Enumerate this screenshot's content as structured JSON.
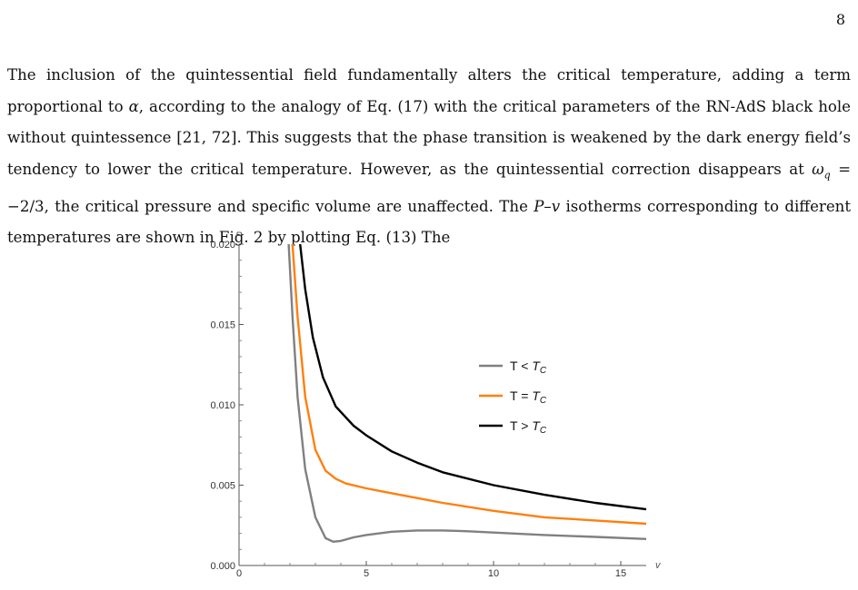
{
  "page": {
    "number": "8"
  },
  "paragraph": {
    "p1": "The inclusion of the quintessential field fundamentally alters the critical temperature, adding a term proportional to ",
    "alpha": "α",
    "p2": ", according to the analogy of Eq. (17) with the critical parameters of the RN-AdS black hole without quintessence [21, 72]. This suggests that the phase transition is weakened by the dark energy field’s tendency to lower the critical temperature. However, as the quintessential correction disappears at ",
    "omega": "ω",
    "omega_sub": "q",
    "p3": " = −2/3, the critical pressure and specific volume are unaffected. The ",
    "pv": "P–v",
    "p4": " isotherms corresponding to different temperatures are shown in Fig. 2 by plotting Eq. (13) The"
  },
  "chart_data": {
    "type": "line",
    "xlabel": "v",
    "ylabel": "P",
    "xlim": [
      0,
      16
    ],
    "ylim": [
      0,
      0.02
    ],
    "x_ticks": [
      "0",
      "5",
      "10",
      "15"
    ],
    "y_ticks": [
      "0.000",
      "0.005",
      "0.010",
      "0.015",
      "0.020"
    ],
    "legend_position": "top-right",
    "colors": {
      "below": "#808080",
      "critical": "#ff7f0e",
      "above": "#000000"
    },
    "series": [
      {
        "name": "T < T_C",
        "legend_prefix": "T <",
        "legend_T": "T",
        "legend_sub": "C",
        "x": [
          1.95,
          2.1,
          2.3,
          2.6,
          3.0,
          3.4,
          3.7,
          4.0,
          4.5,
          5.0,
          6.0,
          7.0,
          8.0,
          9.0,
          10.0,
          12.0,
          14.0,
          16.0
        ],
        "y": [
          0.02,
          0.0155,
          0.0105,
          0.006,
          0.003,
          0.0017,
          0.00148,
          0.00153,
          0.00175,
          0.0019,
          0.0021,
          0.00218,
          0.00218,
          0.00213,
          0.00205,
          0.0019,
          0.00178,
          0.00165
        ]
      },
      {
        "name": "T = T_C",
        "legend_prefix": "T =",
        "legend_T": "T",
        "legend_sub": "C",
        "x": [
          2.1,
          2.3,
          2.6,
          3.0,
          3.4,
          3.8,
          4.2,
          5.0,
          6.0,
          7.0,
          8.0,
          10.0,
          12.0,
          14.0,
          16.0
        ],
        "y": [
          0.02,
          0.0155,
          0.0105,
          0.0072,
          0.0059,
          0.0054,
          0.0051,
          0.0048,
          0.0045,
          0.0042,
          0.0039,
          0.0034,
          0.003,
          0.0028,
          0.0026
        ]
      },
      {
        "name": "T > T_C",
        "legend_prefix": "T >",
        "legend_T": "T",
        "legend_sub": "C",
        "x": [
          2.4,
          2.6,
          2.9,
          3.3,
          3.8,
          4.5,
          5.0,
          6.0,
          7.0,
          8.0,
          10.0,
          12.0,
          14.0,
          16.0
        ],
        "y": [
          0.02,
          0.0172,
          0.0142,
          0.0117,
          0.0099,
          0.0087,
          0.0081,
          0.0071,
          0.0064,
          0.0058,
          0.005,
          0.0044,
          0.0039,
          0.0035
        ]
      }
    ]
  }
}
